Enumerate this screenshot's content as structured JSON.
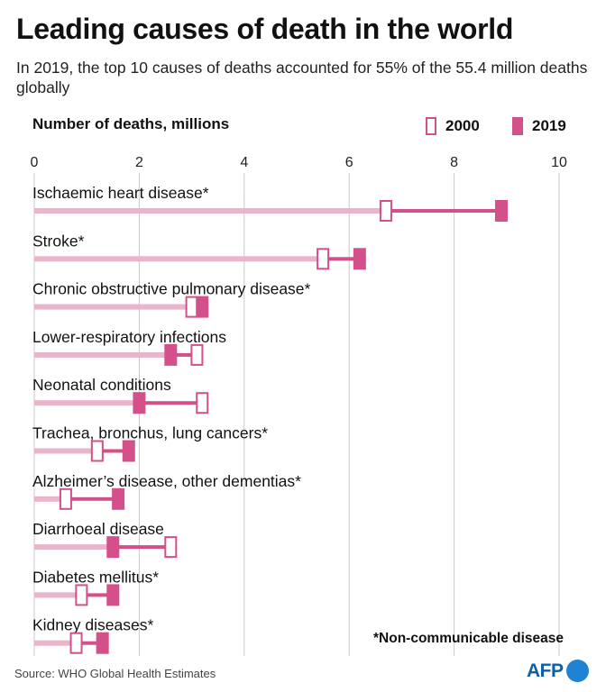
{
  "header": {
    "title": "Leading causes of death in the world",
    "subtitle": "In 2019, the top 10 causes of deaths accounted for 55% of the 55.4 million deaths globally"
  },
  "legend": {
    "unit_label": "Number of deaths, millions",
    "item_2000": "2000",
    "item_2019": "2019"
  },
  "colors": {
    "accent": "#d3508a",
    "bar_light": "#ebb4cc",
    "grid": "#c9c9c9",
    "logo": "#0c5fa8"
  },
  "chart_data": {
    "type": "bar",
    "title": "Leading causes of death in the world",
    "xlabel": "Number of deaths, millions",
    "xlim": [
      0,
      10
    ],
    "x_ticks": [
      "0",
      "2",
      "4",
      "6",
      "8",
      "10"
    ],
    "grid": true,
    "legend_position": "top-right",
    "categories": [
      "Ischaemic heart disease*",
      "Stroke*",
      "Chronic obstructive pulmonary disease*",
      "Lower-respiratory infections",
      "Neonatal conditions",
      "Trachea, bronchus, lung cancers*",
      "Alzheimer’s disease, other dementias*",
      "Diarrhoeal disease",
      "Diabetes mellitus*",
      "Kidney diseases*"
    ],
    "series": [
      {
        "name": "2000",
        "values": [
          6.7,
          5.5,
          3.0,
          3.1,
          3.2,
          1.2,
          0.6,
          2.6,
          0.9,
          0.8
        ]
      },
      {
        "name": "2019",
        "values": [
          8.9,
          6.2,
          3.2,
          2.6,
          2.0,
          1.8,
          1.6,
          1.5,
          1.5,
          1.3
        ]
      }
    ]
  },
  "footer": {
    "footnote": "*Non-communicable disease",
    "source": "Source: WHO Global Health Estimates",
    "logo": "AFP"
  }
}
